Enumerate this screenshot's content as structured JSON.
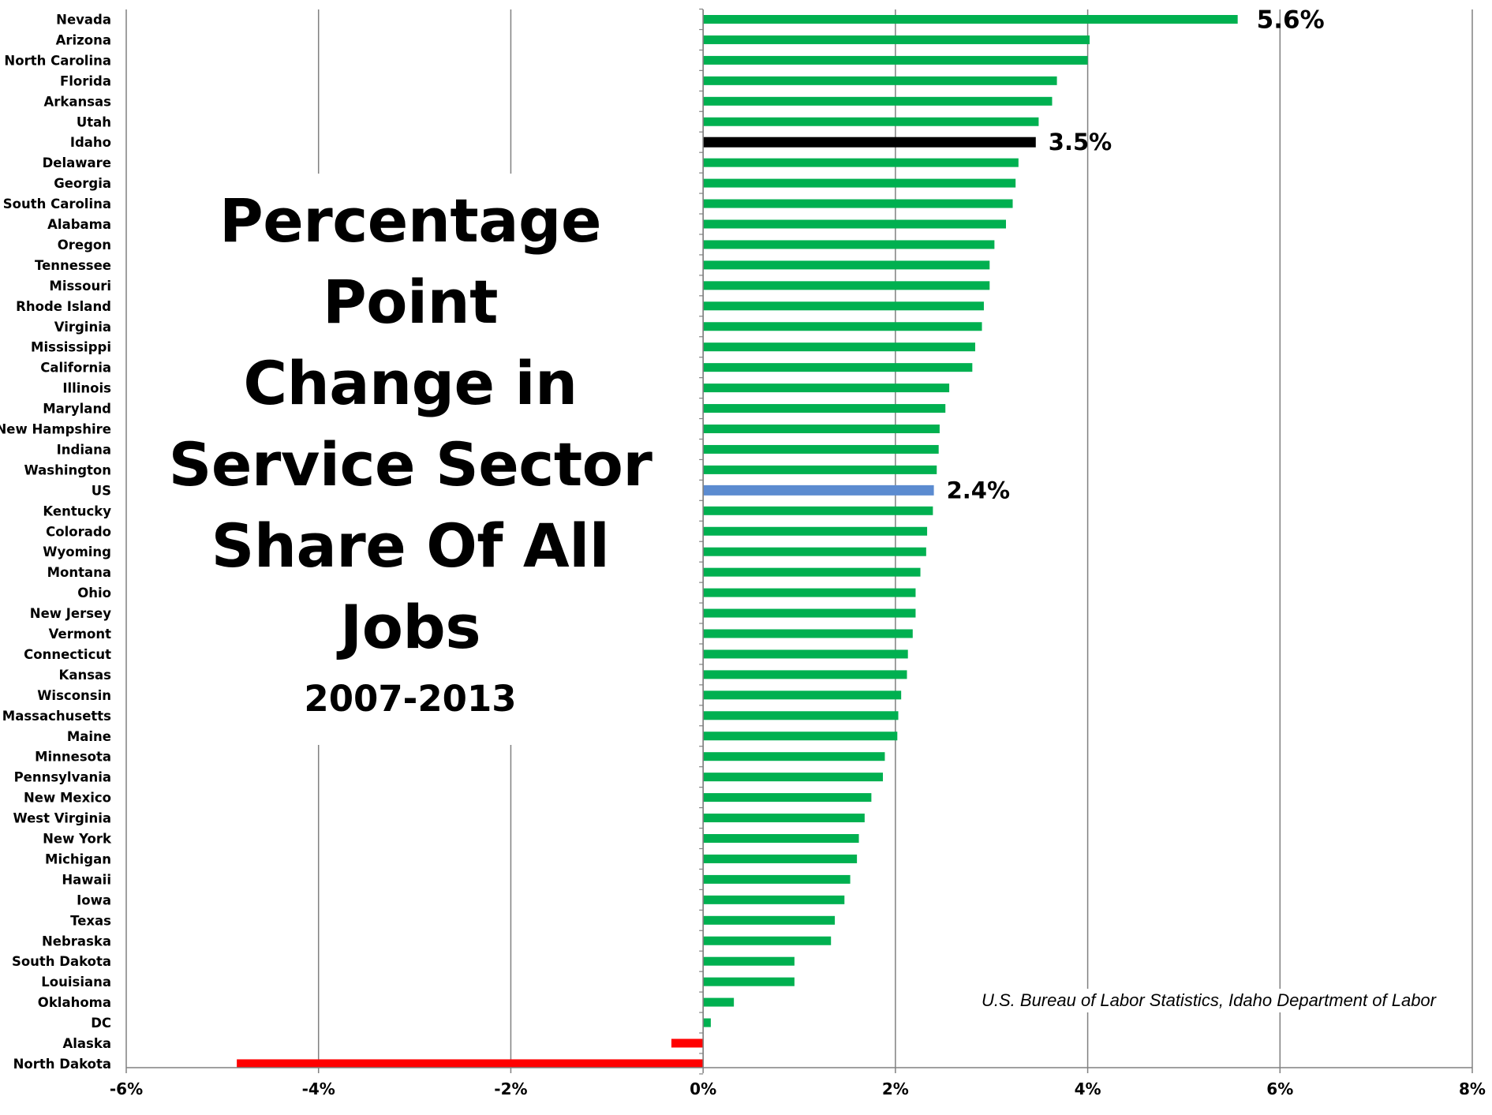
{
  "chart_data": {
    "type": "bar",
    "orientation": "horizontal",
    "title_lines": [
      "Percentage Point",
      "Change in",
      "Service Sector",
      "Share Of All Jobs"
    ],
    "subtitle": "2007-2013",
    "source": "U.S. Bureau of Labor Statistics, Idaho Department of Labor",
    "xlim": [
      -6,
      8
    ],
    "x_ticks": [
      -6,
      -4,
      -2,
      0,
      2,
      4,
      6,
      8
    ],
    "x_tick_labels": [
      "-6%",
      "-4%",
      "-2%",
      "0%",
      "2%",
      "4%",
      "6%",
      "8%"
    ],
    "grid": true,
    "categories": [
      "Nevada",
      "Arizona",
      "North Carolina",
      "Florida",
      "Arkansas",
      "Utah",
      "Idaho",
      "Delaware",
      "Georgia",
      "South Carolina",
      "Alabama",
      "Oregon",
      "Tennessee",
      "Missouri",
      "Rhode Island",
      "Virginia",
      "Mississippi",
      "California",
      "Illinois",
      "Maryland",
      "New Hampshire",
      "Indiana",
      "Washington",
      "US",
      "Kentucky",
      "Colorado",
      "Wyoming",
      "Montana",
      "Ohio",
      "New Jersey",
      "Vermont",
      "Connecticut",
      "Kansas",
      "Wisconsin",
      "Massachusetts",
      "Maine",
      "Minnesota",
      "Pennsylvania",
      "New Mexico",
      "West Virginia",
      "New York",
      "Michigan",
      "Hawaii",
      "Iowa",
      "Texas",
      "Nebraska",
      "South Dakota",
      "Louisiana",
      "Oklahoma",
      "DC",
      "Alaska",
      "North Dakota"
    ],
    "values": [
      5.56,
      4.02,
      4.0,
      3.68,
      3.63,
      3.49,
      3.46,
      3.28,
      3.25,
      3.22,
      3.15,
      3.03,
      2.98,
      2.98,
      2.92,
      2.9,
      2.83,
      2.8,
      2.56,
      2.52,
      2.46,
      2.45,
      2.43,
      2.4,
      2.39,
      2.33,
      2.32,
      2.26,
      2.21,
      2.21,
      2.18,
      2.13,
      2.12,
      2.06,
      2.03,
      2.02,
      1.89,
      1.87,
      1.75,
      1.68,
      1.62,
      1.6,
      1.53,
      1.47,
      1.37,
      1.33,
      0.95,
      0.95,
      0.32,
      0.08,
      -0.33,
      -4.85
    ],
    "colors": {
      "default": "#00b050",
      "highlight_state": "#000000",
      "us": "#5b8bd0",
      "negative": "#ff0000",
      "grid": "#808080",
      "axis": "#808080"
    },
    "highlight": "Idaho",
    "us_category": "US",
    "value_labels": [
      {
        "category": "Nevada",
        "text": "5.6%"
      },
      {
        "category": "Idaho",
        "text": "3.5%"
      },
      {
        "category": "US",
        "text": "2.4%"
      }
    ]
  }
}
